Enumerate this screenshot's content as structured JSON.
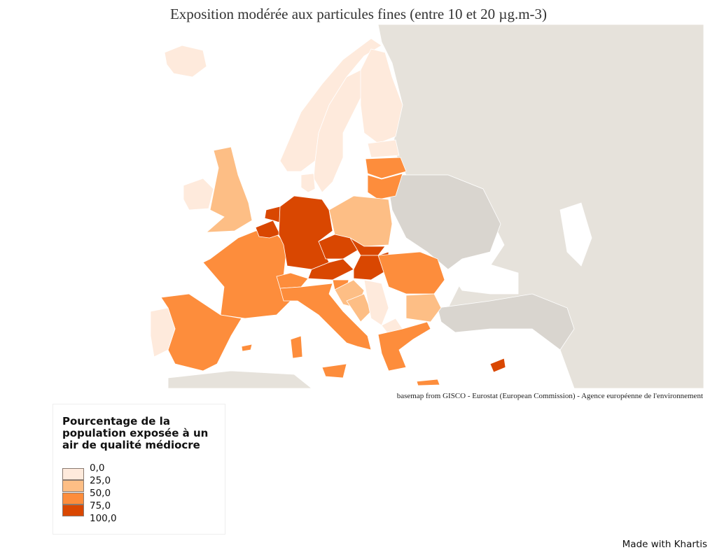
{
  "title": "Exposition modérée aux particules fines (entre 10 et 20 µg.m-3)",
  "source": "basemap from GISCO - Eurostat (European Commission) - Agence européenne de l'environnement",
  "credit": "Made with Khartis",
  "legend": {
    "title": "Pourcentage de la population exposée à un air de qualité médiocre",
    "breaks": [
      "0,0",
      "25,0",
      "50,0",
      "75,0",
      "100,0"
    ],
    "colors": [
      "#feeadc",
      "#fdbe85",
      "#fd8d3c",
      "#d94701"
    ]
  },
  "colors": {
    "nodata_land": "#e6e2db",
    "nodata_land_dark": "#d9d5cf",
    "sea": "#ffffff",
    "border": "#ffffff"
  },
  "regions": [
    {
      "id": "IS",
      "class": 0
    },
    {
      "id": "NO",
      "class": 0
    },
    {
      "id": "SE",
      "class": 0
    },
    {
      "id": "FI",
      "class": 0
    },
    {
      "id": "EE",
      "class": 0
    },
    {
      "id": "LV",
      "class": 2
    },
    {
      "id": "LT",
      "class": 2
    },
    {
      "id": "IE",
      "class": 0
    },
    {
      "id": "UK",
      "class": 1
    },
    {
      "id": "FR",
      "class": 2
    },
    {
      "id": "ES",
      "class": 2
    },
    {
      "id": "PT",
      "class": 0
    },
    {
      "id": "BE",
      "class": 3
    },
    {
      "id": "NL",
      "class": 3
    },
    {
      "id": "DE",
      "class": 3
    },
    {
      "id": "PL",
      "class": 1
    },
    {
      "id": "CZ",
      "class": 3
    },
    {
      "id": "AT",
      "class": 3
    },
    {
      "id": "SK",
      "class": 3
    },
    {
      "id": "HU",
      "class": 3
    },
    {
      "id": "CH",
      "class": 2
    },
    {
      "id": "IT",
      "class": 2
    },
    {
      "id": "SI",
      "class": 2
    },
    {
      "id": "HR",
      "class": 1
    },
    {
      "id": "BA",
      "class": 1
    },
    {
      "id": "RS",
      "class": 0
    },
    {
      "id": "RO",
      "class": 2
    },
    {
      "id": "BG",
      "class": 1
    },
    {
      "id": "MK",
      "class": 0
    },
    {
      "id": "GR",
      "class": 2
    },
    {
      "id": "CY",
      "class": 3
    },
    {
      "id": "DK",
      "class": 0
    }
  ]
}
